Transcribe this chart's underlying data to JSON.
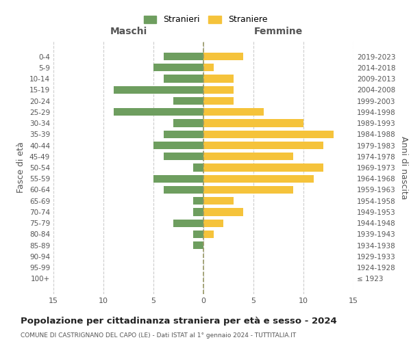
{
  "age_groups": [
    "100+",
    "95-99",
    "90-94",
    "85-89",
    "80-84",
    "75-79",
    "70-74",
    "65-69",
    "60-64",
    "55-59",
    "50-54",
    "45-49",
    "40-44",
    "35-39",
    "30-34",
    "25-29",
    "20-24",
    "15-19",
    "10-14",
    "5-9",
    "0-4"
  ],
  "birth_years": [
    "≤ 1923",
    "1924-1928",
    "1929-1933",
    "1934-1938",
    "1939-1943",
    "1944-1948",
    "1949-1953",
    "1954-1958",
    "1959-1963",
    "1964-1968",
    "1969-1973",
    "1974-1978",
    "1979-1983",
    "1984-1988",
    "1989-1993",
    "1994-1998",
    "1999-2003",
    "2004-2008",
    "2009-2013",
    "2014-2018",
    "2019-2023"
  ],
  "maschi": [
    0,
    0,
    0,
    1,
    1,
    3,
    1,
    1,
    4,
    5,
    1,
    4,
    5,
    4,
    3,
    9,
    3,
    9,
    4,
    5,
    4
  ],
  "femmine": [
    0,
    0,
    0,
    0,
    1,
    2,
    4,
    3,
    9,
    11,
    12,
    9,
    12,
    13,
    10,
    6,
    3,
    3,
    3,
    1,
    4
  ],
  "color_maschi": "#6e9e5f",
  "color_femmine": "#f5c33b",
  "title": "Popolazione per cittadinanza straniera per età e sesso - 2024",
  "subtitle": "COMUNE DI CASTRIGNANO DEL CAPO (LE) - Dati ISTAT al 1° gennaio 2024 - TUTTITALIA.IT",
  "ylabel_left": "Fasce di età",
  "ylabel_right": "Anni di nascita",
  "xlabel_left": "Maschi",
  "xlabel_right": "Femmine",
  "legend_maschi": "Stranieri",
  "legend_femmine": "Straniere",
  "xlim": 15,
  "background_color": "#ffffff",
  "grid_color": "#cccccc"
}
